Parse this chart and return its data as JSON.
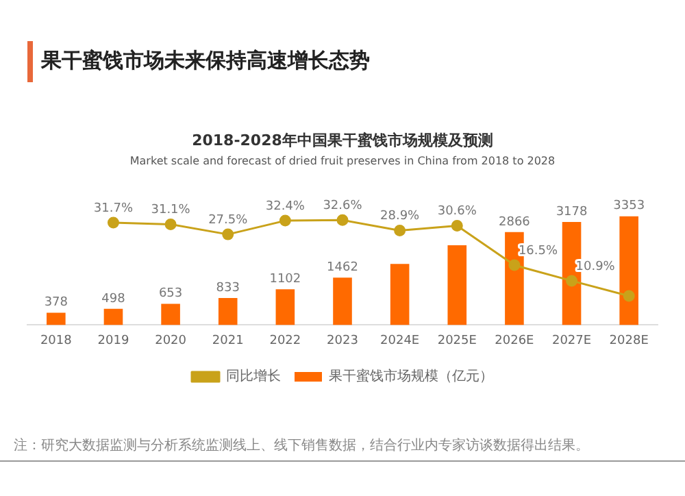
{
  "chart_data": {
    "type": "bar",
    "title": "2018-2028年中国果干蜜饯市场规模及预测",
    "subtitle": "Market scale and forecast of dried fruit preserves in China from 2018 to 2028",
    "annotations": [
      "果干蜜饯市场未来保持高速增长态势",
      "注：研究大数据监测与分析系统监测线上、线下销售数据，结合行业内专家访谈数据得出结果。"
    ],
    "categories": [
      "2018",
      "2019",
      "2020",
      "2021",
      "2022",
      "2023",
      "2024E",
      "2025E",
      "2026E",
      "2027E",
      "2028E"
    ],
    "series": [
      {
        "name": "果干蜜饯市场规模（亿元）",
        "color": "#ff6a00",
        "values": [
          378,
          498,
          653,
          833,
          1102,
          1462,
          1884,
          2460,
          2866,
          3178,
          3353
        ],
        "value_labels": [
          "378",
          "498",
          "653",
          "833",
          "1102",
          "1462",
          null,
          null,
          "2866",
          "3178",
          "3353"
        ]
      },
      {
        "name": "同比增长",
        "type": "line",
        "axis": "y2",
        "color": "#c9a21a",
        "marker": "circle",
        "values": [
          null,
          31.7,
          31.1,
          27.5,
          32.4,
          32.6,
          28.9,
          30.6,
          16.5,
          10.9,
          5.5
        ],
        "value_labels": [
          null,
          "31.7%",
          "31.1%",
          "27.5%",
          "32.4%",
          "32.6%",
          "28.9%",
          "30.6%",
          "16.5%",
          "10.9%",
          null
        ]
      }
    ],
    "grid": false,
    "legend": "bottom"
  }
}
